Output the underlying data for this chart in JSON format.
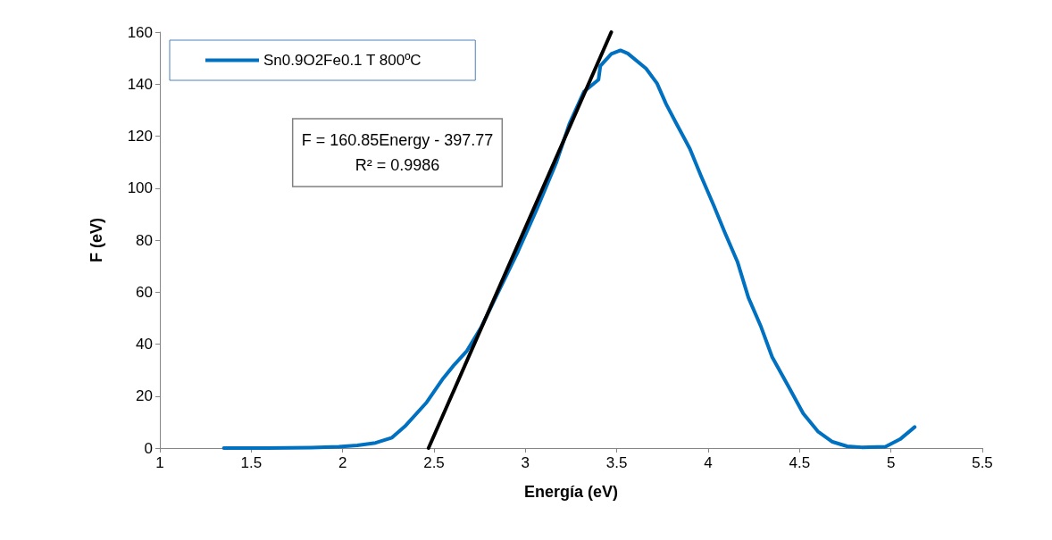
{
  "chart_data": {
    "type": "line",
    "xlabel": "Energía (eV)",
    "ylabel": "F (eV)",
    "xlim": [
      1,
      5.5
    ],
    "xticks": [
      1,
      1.5,
      2,
      2.5,
      3,
      3.5,
      4,
      4.5,
      5,
      5.5
    ],
    "ylim": [
      0,
      160
    ],
    "yticks": [
      0,
      20,
      40,
      60,
      80,
      100,
      120,
      140,
      160
    ],
    "grid": false,
    "legend": "top left",
    "marker": "none",
    "line_style": "solid",
    "annotations": [
      "F = 160.85Energy - 397.77",
      "R² = 0.9986"
    ],
    "series": [
      {
        "name": "Sn0.9O2Fe0.1 T 800ºC",
        "color": "#0070c0",
        "x": [
          1.35,
          1.59,
          1.83,
          1.98,
          2.08,
          2.18,
          2.27,
          2.34,
          2.46,
          2.55,
          2.61,
          2.68,
          2.76,
          2.85,
          2.96,
          3.06,
          3.17,
          3.24,
          3.32,
          3.4,
          3.41,
          3.47,
          3.52,
          3.56,
          3.66,
          3.72,
          3.77,
          3.83,
          3.9,
          3.96,
          4.03,
          4.09,
          4.16,
          4.22,
          4.29,
          4.35,
          4.44,
          4.52,
          4.6,
          4.68,
          4.76,
          4.84,
          4.97,
          5.05,
          5.13
        ],
        "values": [
          0,
          0,
          0.2,
          0.5,
          1,
          2,
          4,
          8.3,
          17.6,
          26.8,
          32,
          37.4,
          46.7,
          59.8,
          75.7,
          91.5,
          110,
          124.6,
          137.1,
          141.7,
          147,
          151.6,
          153,
          151.8,
          146,
          140.3,
          132.3,
          124.3,
          115.1,
          104.8,
          93.4,
          83.1,
          71.7,
          57.9,
          46.5,
          35,
          23.6,
          13.3,
          6.4,
          2.4,
          0.7,
          0.3,
          0.5,
          3.4,
          8.1
        ]
      },
      {
        "type": "line",
        "color": "#000000",
        "x": [
          2.47,
          3.47
        ],
        "values": [
          0,
          160
        ]
      }
    ]
  }
}
